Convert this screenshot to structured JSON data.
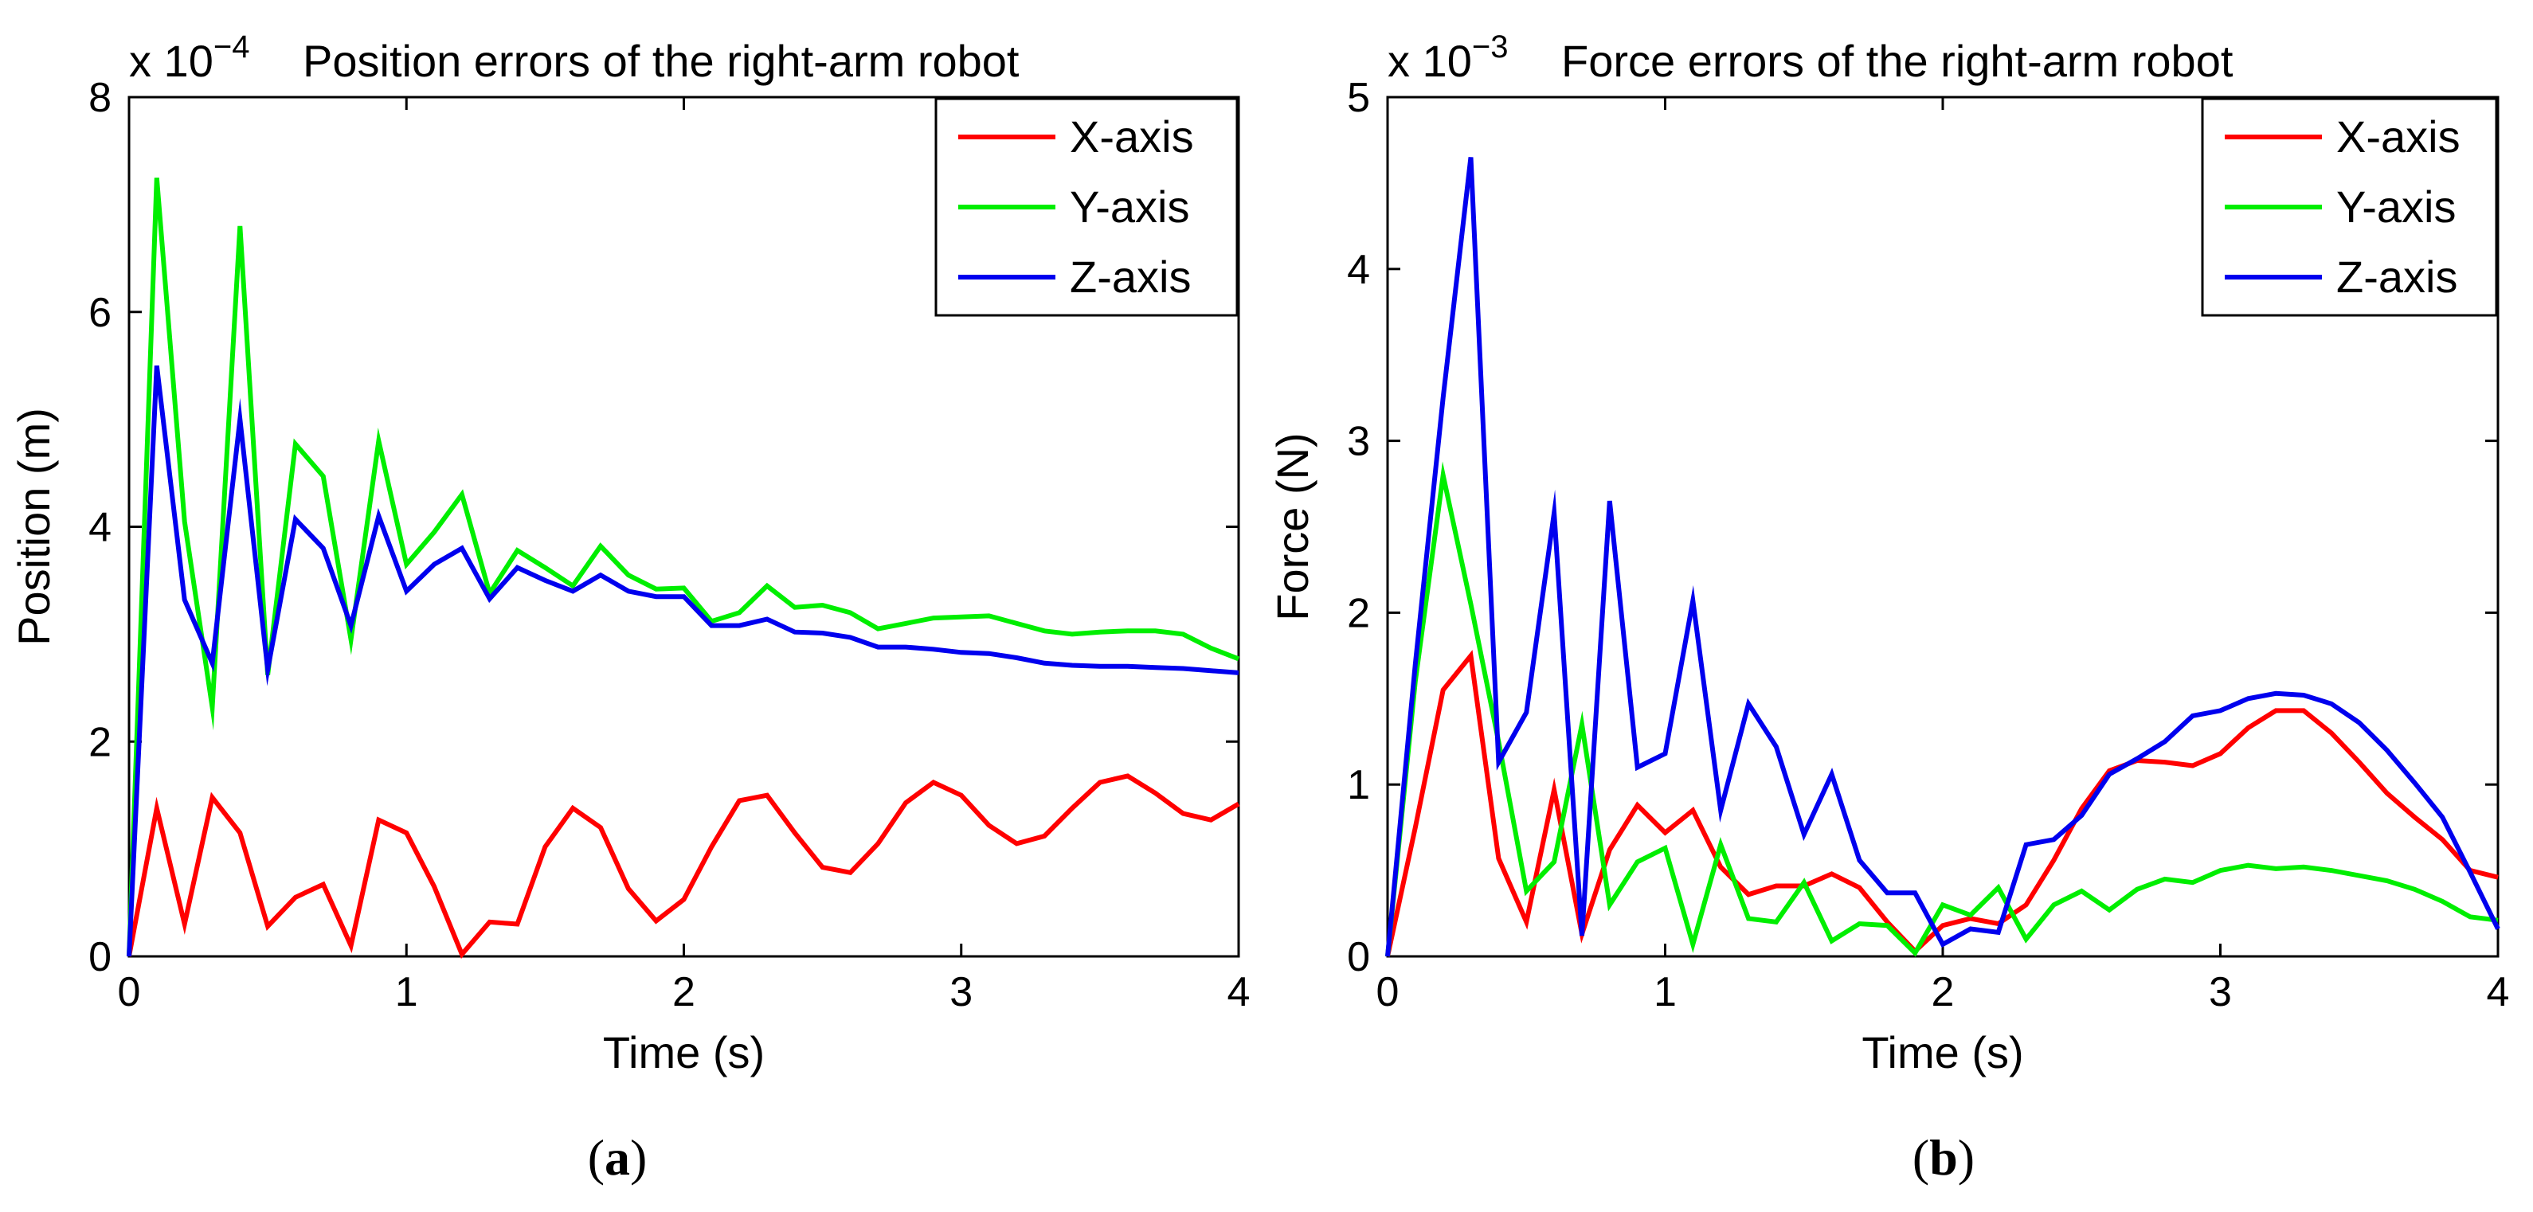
{
  "chart_data": [
    {
      "type": "line",
      "title": "Position errors of the right-arm robot",
      "panel_label": "a",
      "xlabel": "Time (s)",
      "ylabel": "Position (m)",
      "y_multiplier": {
        "base": "x 10",
        "exponent": "−4"
      },
      "xlim": [
        0,
        4
      ],
      "ylim": [
        0,
        8
      ],
      "xticks": [
        "0",
        "1",
        "2",
        "3",
        "4"
      ],
      "yticks": [
        "0",
        "2",
        "4",
        "6",
        "8"
      ],
      "legend_position": "top-right",
      "x": [
        0,
        0.1,
        0.2,
        0.3,
        0.4,
        0.5,
        0.6,
        0.7,
        0.8,
        0.9,
        1.0,
        1.1,
        1.2,
        1.3,
        1.4,
        1.5,
        1.6,
        1.7,
        1.8,
        1.9,
        2.0,
        2.1,
        2.2,
        2.3,
        2.4,
        2.5,
        2.6,
        2.7,
        2.8,
        2.9,
        3.0,
        3.1,
        3.2,
        3.3,
        3.4,
        3.5,
        3.6,
        3.7,
        3.8,
        3.9,
        4.0
      ],
      "series": [
        {
          "name": "X-axis",
          "color": "#ff0000",
          "values": [
            0,
            1.38,
            0.3,
            1.48,
            1.15,
            0.28,
            0.55,
            0.67,
            0.1,
            1.27,
            1.15,
            0.65,
            0.02,
            0.32,
            0.3,
            1.02,
            1.38,
            1.2,
            0.63,
            0.33,
            0.53,
            1.02,
            1.45,
            1.5,
            1.15,
            0.83,
            0.78,
            1.05,
            1.43,
            1.62,
            1.5,
            1.22,
            1.05,
            1.12,
            1.38,
            1.62,
            1.68,
            1.52,
            1.33,
            1.27,
            1.42
          ]
        },
        {
          "name": "Y-axis",
          "color": "#00ee00",
          "values": [
            0,
            7.25,
            4.05,
            2.32,
            6.8,
            2.62,
            4.77,
            4.47,
            2.95,
            4.8,
            3.65,
            3.95,
            4.3,
            3.38,
            3.78,
            3.62,
            3.45,
            3.82,
            3.55,
            3.42,
            3.43,
            3.12,
            3.2,
            3.45,
            3.25,
            3.27,
            3.2,
            3.05,
            3.1,
            3.15,
            3.16,
            3.17,
            3.1,
            3.03,
            3.0,
            3.02,
            3.03,
            3.03,
            3.0,
            2.87,
            2.77
          ]
        },
        {
          "name": "Z-axis",
          "color": "#0000ee",
          "values": [
            0,
            5.5,
            3.32,
            2.73,
            5.0,
            2.67,
            4.07,
            3.8,
            3.08,
            4.1,
            3.4,
            3.65,
            3.8,
            3.33,
            3.62,
            3.5,
            3.4,
            3.55,
            3.4,
            3.35,
            3.35,
            3.08,
            3.08,
            3.14,
            3.02,
            3.01,
            2.97,
            2.88,
            2.88,
            2.86,
            2.83,
            2.82,
            2.78,
            2.73,
            2.71,
            2.7,
            2.7,
            2.69,
            2.68,
            2.66,
            2.64
          ]
        }
      ]
    },
    {
      "type": "line",
      "title": "Force errors of the right-arm robot",
      "panel_label": "b",
      "xlabel": "Time (s)",
      "ylabel": "Force (N)",
      "y_multiplier": {
        "base": "x 10",
        "exponent": "−3"
      },
      "xlim": [
        0,
        4
      ],
      "ylim": [
        0,
        5
      ],
      "xticks": [
        "0",
        "1",
        "2",
        "3",
        "4"
      ],
      "yticks": [
        "0",
        "1",
        "2",
        "3",
        "4",
        "5"
      ],
      "legend_position": "top-right",
      "x": [
        0,
        0.1,
        0.2,
        0.3,
        0.4,
        0.5,
        0.6,
        0.7,
        0.8,
        0.9,
        1.0,
        1.1,
        1.2,
        1.3,
        1.4,
        1.5,
        1.6,
        1.7,
        1.8,
        1.9,
        2.0,
        2.1,
        2.2,
        2.3,
        2.4,
        2.5,
        2.6,
        2.7,
        2.8,
        2.9,
        3.0,
        3.1,
        3.2,
        3.3,
        3.4,
        3.5,
        3.6,
        3.7,
        3.8,
        3.9,
        4.0
      ],
      "series": [
        {
          "name": "X-axis",
          "color": "#ff0000",
          "values": [
            0,
            0.75,
            1.55,
            1.75,
            0.57,
            0.2,
            0.97,
            0.13,
            0.62,
            0.88,
            0.72,
            0.85,
            0.52,
            0.36,
            0.41,
            0.41,
            0.48,
            0.4,
            0.2,
            0.03,
            0.18,
            0.22,
            0.19,
            0.3,
            0.56,
            0.86,
            1.08,
            1.14,
            1.13,
            1.11,
            1.18,
            1.33,
            1.43,
            1.43,
            1.3,
            1.13,
            0.95,
            0.81,
            0.68,
            0.5,
            0.46
          ]
        },
        {
          "name": "Y-axis",
          "color": "#00ee00",
          "values": [
            0,
            1.6,
            2.8,
            2.05,
            1.25,
            0.38,
            0.55,
            1.35,
            0.3,
            0.55,
            0.63,
            0.07,
            0.65,
            0.22,
            0.2,
            0.43,
            0.09,
            0.19,
            0.18,
            0.02,
            0.3,
            0.24,
            0.4,
            0.1,
            0.3,
            0.38,
            0.27,
            0.39,
            0.45,
            0.43,
            0.5,
            0.53,
            0.51,
            0.52,
            0.5,
            0.47,
            0.44,
            0.39,
            0.32,
            0.23,
            0.21
          ]
        },
        {
          "name": "Z-axis",
          "color": "#0000ee",
          "values": [
            0,
            1.7,
            3.25,
            4.65,
            1.13,
            1.42,
            2.58,
            0.12,
            2.65,
            1.1,
            1.18,
            2.07,
            0.85,
            1.47,
            1.22,
            0.71,
            1.06,
            0.56,
            0.37,
            0.37,
            0.07,
            0.16,
            0.14,
            0.65,
            0.68,
            0.82,
            1.06,
            1.15,
            1.25,
            1.4,
            1.43,
            1.5,
            1.53,
            1.52,
            1.47,
            1.36,
            1.2,
            1.01,
            0.81,
            0.49,
            0.16
          ]
        }
      ]
    }
  ]
}
